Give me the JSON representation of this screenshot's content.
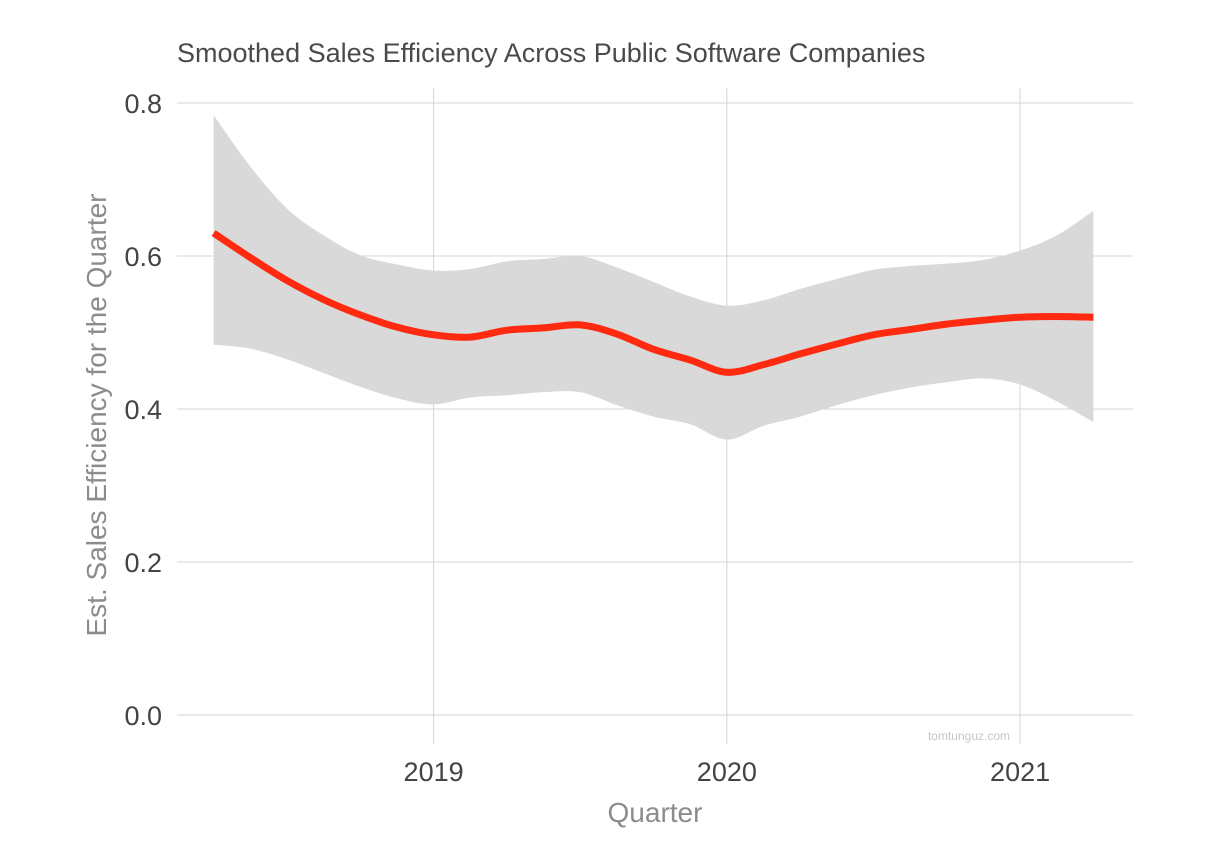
{
  "chart_data": {
    "type": "line",
    "title": "Smoothed Sales Efficiency Across Public Software Companies",
    "xlabel": "Quarter",
    "ylabel": "Est. Sales Efficiency for the Quarter",
    "watermark": "tomtunguz.com",
    "x_ticks": [
      {
        "value": 2019,
        "label": "2019"
      },
      {
        "value": 2020,
        "label": "2020"
      },
      {
        "value": 2021,
        "label": "2021"
      }
    ],
    "y_ticks": [
      {
        "value": 0.0,
        "label": "0.0"
      },
      {
        "value": 0.2,
        "label": "0.2"
      },
      {
        "value": 0.4,
        "label": "0.4"
      },
      {
        "value": 0.6,
        "label": "0.6"
      },
      {
        "value": 0.8,
        "label": "0.8"
      }
    ],
    "xlim": [
      2018.125,
      2021.385
    ],
    "ylim": [
      0.0,
      0.8
    ],
    "grid": true,
    "legend": "none",
    "line_color": "#ff2a10",
    "band_color": "#d9d9d9",
    "series": [
      {
        "x": [
          2018.25,
          2018.375,
          2018.5,
          2018.625,
          2018.75,
          2018.875,
          2019.0,
          2019.125,
          2019.25,
          2019.375,
          2019.5,
          2019.625,
          2019.75,
          2019.875,
          2020.0,
          2020.125,
          2020.25,
          2020.375,
          2020.5,
          2020.625,
          2020.75,
          2020.875,
          2021.0,
          2021.125,
          2021.25
        ],
        "y": [
          0.63,
          0.598,
          0.568,
          0.543,
          0.523,
          0.507,
          0.497,
          0.494,
          0.503,
          0.506,
          0.51,
          0.498,
          0.478,
          0.464,
          0.448,
          0.458,
          0.472,
          0.485,
          0.497,
          0.504,
          0.511,
          0.516,
          0.52,
          0.521,
          0.52
        ],
        "lower": [
          0.484,
          0.479,
          0.465,
          0.447,
          0.429,
          0.414,
          0.406,
          0.415,
          0.418,
          0.422,
          0.422,
          0.405,
          0.39,
          0.38,
          0.36,
          0.378,
          0.39,
          0.405,
          0.418,
          0.428,
          0.435,
          0.44,
          0.432,
          0.41,
          0.383
        ],
        "upper": [
          0.784,
          0.717,
          0.662,
          0.627,
          0.601,
          0.589,
          0.581,
          0.583,
          0.593,
          0.596,
          0.6,
          0.585,
          0.566,
          0.547,
          0.535,
          0.542,
          0.557,
          0.57,
          0.582,
          0.587,
          0.59,
          0.595,
          0.607,
          0.627,
          0.659
        ]
      }
    ]
  }
}
